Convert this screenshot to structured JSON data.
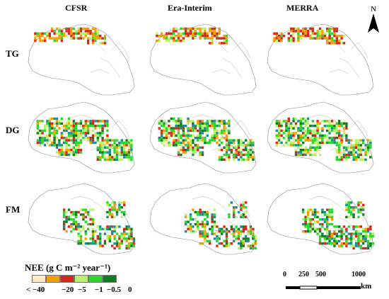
{
  "columns": [
    "CFSR",
    "Era-Interim",
    "MERRA"
  ],
  "rows": [
    "TG",
    "DG",
    "FM"
  ],
  "north_label": "N",
  "legend": {
    "title": "NEE (g C m⁻² year⁻¹)",
    "classes": [
      {
        "label": "< −40",
        "color": "#FFEBC4"
      },
      {
        "label": "−20",
        "color": "#F5A000"
      },
      {
        "label": "−5",
        "color": "#D3281B"
      },
      {
        "label": "−1",
        "color": "#B9F36E"
      },
      {
        "label": "−0.5",
        "color": "#2CD62C"
      },
      {
        "label": "0",
        "color": "#107C1E"
      }
    ],
    "extra_color": "#1E8C93"
  },
  "scale_bar": {
    "ticks": [
      "0",
      "250",
      "500",
      "1000"
    ],
    "unit": "km"
  }
}
